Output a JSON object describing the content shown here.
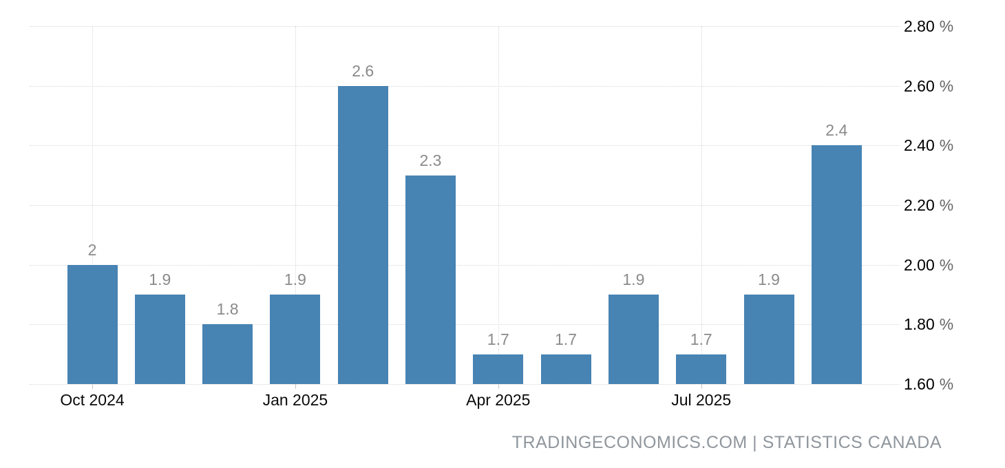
{
  "chart_data": {
    "type": "bar",
    "title": "",
    "values": [
      2,
      1.9,
      1.8,
      1.9,
      2.6,
      2.3,
      1.7,
      1.7,
      1.9,
      1.7,
      1.9,
      2.4
    ],
    "data_labels": [
      "2",
      "1.9",
      "1.8",
      "1.9",
      "2.6",
      "2.3",
      "1.7",
      "1.7",
      "1.9",
      "1.7",
      "1.9",
      "2.4"
    ],
    "x_ticks": [
      {
        "label": "Oct 2024",
        "bar_index": 0
      },
      {
        "label": "Jan 2025",
        "bar_index": 3
      },
      {
        "label": "Apr 2025",
        "bar_index": 6
      },
      {
        "label": "Jul 2025",
        "bar_index": 9
      }
    ],
    "y_ticks": [
      "2.80 %",
      "2.60 %",
      "2.40 %",
      "2.20 %",
      "2.00 %",
      "1.80 %",
      "1.60 %"
    ],
    "ylim": [
      1.6,
      2.8
    ],
    "y_axis_side": "right",
    "grid": "dotted",
    "legend": "none",
    "colors": {
      "bar": "#4783b3",
      "bar_value_label": "#8a8a8a",
      "axis_number": "#000000",
      "axis_percent": "#666666",
      "x_label": "#0a0a0a",
      "gridline": "#d6d6d6",
      "tick_mark": "#c5c5c5",
      "attribution": "#8f969c"
    }
  },
  "attribution": {
    "text": "TRADINGECONOMICS.COM | STATISTICS CANADA"
  }
}
